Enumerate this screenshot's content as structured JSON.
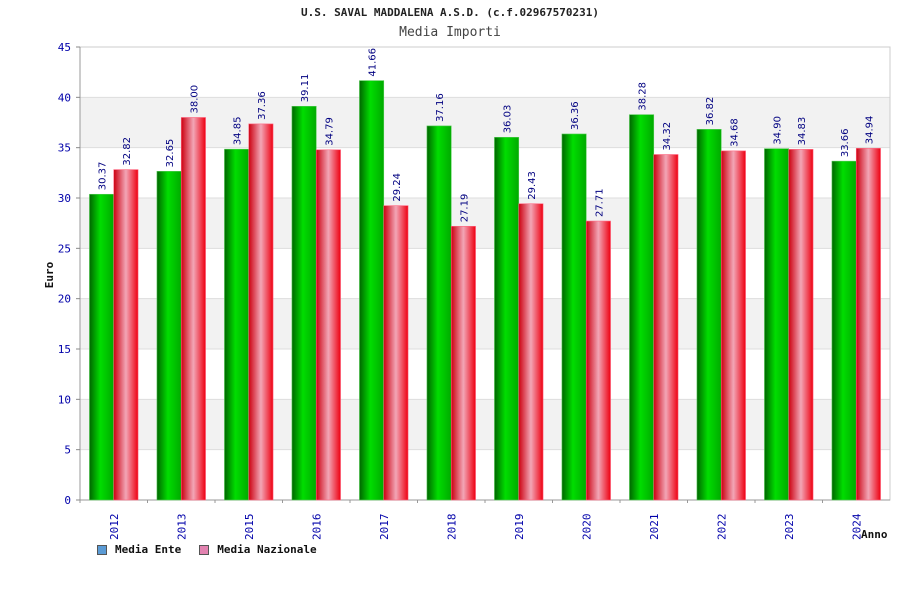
{
  "header": {
    "title": "U.S. SAVAL MADDALENA A.S.D. (c.f.02967570231)",
    "subtitle": "Media Importi"
  },
  "legend": {
    "items": [
      {
        "label": "Media Ente",
        "color": "#5b9bd5"
      },
      {
        "label": "Media Nazionale",
        "color": "#e383b1"
      }
    ]
  },
  "colors": {
    "series_1": "#00aa00",
    "series_2": "#ee0011",
    "value_label": "#000080",
    "tick_label": "#0000aa",
    "band": "#f2f2f2"
  },
  "chart_data": {
    "type": "bar",
    "title": "U.S. SAVAL MADDALENA A.S.D. (c.f.02967570231)",
    "subtitle": "Media Importi",
    "xlabel": "Anno",
    "ylabel": "Euro",
    "ylim": [
      0,
      45
    ],
    "yticks": [
      0,
      5,
      10,
      15,
      20,
      25,
      30,
      35,
      40,
      45
    ],
    "grid": true,
    "legend_position": "bottom-left",
    "categories": [
      "2012",
      "2013",
      "2015",
      "2016",
      "2017",
      "2018",
      "2019",
      "2020",
      "2021",
      "2022",
      "2023",
      "2024"
    ],
    "series": [
      {
        "name": "Media Ente",
        "values": [
          30.37,
          32.65,
          34.85,
          39.11,
          41.66,
          37.16,
          36.03,
          36.36,
          38.28,
          36.82,
          34.9,
          33.66
        ]
      },
      {
        "name": "Media Nazionale",
        "values": [
          32.82,
          38.0,
          37.36,
          34.79,
          29.24,
          27.19,
          29.43,
          27.71,
          34.32,
          34.68,
          34.83,
          34.94
        ]
      }
    ]
  }
}
